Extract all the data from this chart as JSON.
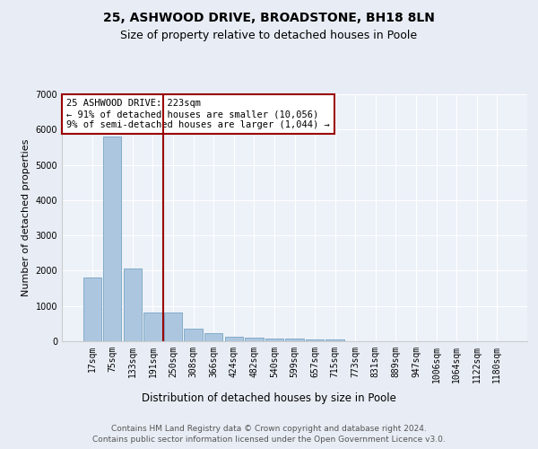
{
  "title1": "25, ASHWOOD DRIVE, BROADSTONE, BH18 8LN",
  "title2": "Size of property relative to detached houses in Poole",
  "xlabel": "Distribution of detached houses by size in Poole",
  "ylabel": "Number of detached properties",
  "bar_labels": [
    "17sqm",
    "75sqm",
    "133sqm",
    "191sqm",
    "250sqm",
    "308sqm",
    "366sqm",
    "424sqm",
    "482sqm",
    "540sqm",
    "599sqm",
    "657sqm",
    "715sqm",
    "773sqm",
    "831sqm",
    "889sqm",
    "947sqm",
    "1006sqm",
    "1064sqm",
    "1122sqm",
    "1180sqm"
  ],
  "bar_values": [
    1800,
    5800,
    2050,
    820,
    820,
    350,
    220,
    130,
    100,
    80,
    70,
    60,
    55,
    0,
    0,
    0,
    0,
    0,
    0,
    0,
    0
  ],
  "bar_color": "#adc6e0",
  "bar_edge_color": "#6699bb",
  "vline_x": 3.5,
  "vline_color": "#990000",
  "annotation_title": "25 ASHWOOD DRIVE: 223sqm",
  "annotation_line1": "← 91% of detached houses are smaller (10,056)",
  "annotation_line2": "9% of semi-detached houses are larger (1,044) →",
  "annotation_box_color": "#990000",
  "ylim": [
    0,
    7000
  ],
  "yticks": [
    0,
    1000,
    2000,
    3000,
    4000,
    5000,
    6000,
    7000
  ],
  "bg_color": "#e8edf5",
  "plot_bg_color": "#edf1f8",
  "grid_color": "#ffffff",
  "footer1": "Contains HM Land Registry data © Crown copyright and database right 2024.",
  "footer2": "Contains public sector information licensed under the Open Government Licence v3.0.",
  "title1_fontsize": 10,
  "title2_fontsize": 9,
  "xlabel_fontsize": 8.5,
  "ylabel_fontsize": 8,
  "tick_fontsize": 7,
  "footer_fontsize": 6.5
}
